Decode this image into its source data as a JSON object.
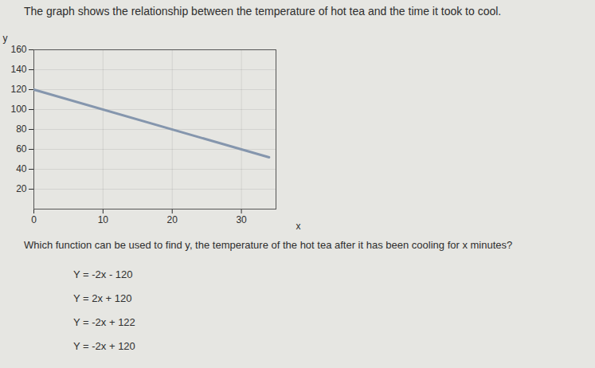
{
  "chart_data": {
    "type": "line",
    "title": "The graph shows the relationship between the temperature of hot tea and the time it took to cool.",
    "x_label": "x",
    "y_label": "y",
    "x": [
      0,
      34
    ],
    "values": [
      120,
      52
    ],
    "color": "#8596ad",
    "xlim": [
      0,
      35
    ],
    "xticks": [
      0,
      10,
      20,
      30
    ],
    "ylim": [
      0,
      160
    ],
    "yticks": [
      20,
      40,
      60,
      80,
      100,
      120,
      140,
      160
    ],
    "grid": true
  },
  "question": "Which function can be used to find y, the temperature of the hot tea after it has been cooling for x minutes?",
  "choices": [
    "Y = -2x - 120",
    "Y = 2x + 120",
    "Y = -2x + 122",
    "Y = -2x + 120"
  ]
}
